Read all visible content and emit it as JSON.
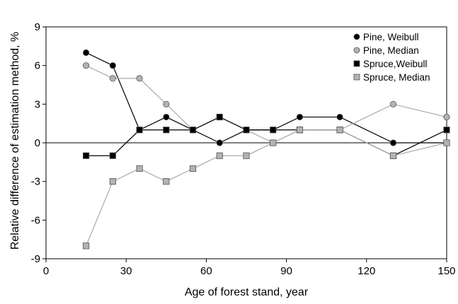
{
  "chart_data": {
    "type": "line",
    "title": "",
    "xlabel": "Age of forest stand, year",
    "ylabel": "Relative difference of estimation method, %",
    "xlim": [
      0,
      150
    ],
    "ylim": [
      -9,
      9
    ],
    "xticks": [
      0,
      30,
      60,
      90,
      120,
      150
    ],
    "yticks": [
      -9,
      -6,
      -3,
      0,
      3,
      6,
      9
    ],
    "grid": false,
    "zero_line": true,
    "legend_position": "top-right",
    "x": [
      15,
      25,
      35,
      45,
      55,
      65,
      75,
      85,
      95,
      110,
      130,
      150
    ],
    "series": [
      {
        "name": "Pine, Weibull",
        "marker": "circle",
        "fill": "#000000",
        "line": "#000000",
        "values": [
          7,
          6,
          1,
          2,
          1,
          0,
          1,
          1,
          2,
          2,
          0,
          0
        ]
      },
      {
        "name": "Pine, Median",
        "marker": "circle",
        "fill": "#b3b3b3",
        "line": "#aaaaaa",
        "values": [
          6,
          5,
          5,
          3,
          1,
          2,
          1,
          0,
          1,
          1,
          3,
          2
        ]
      },
      {
        "name": "Spruce,Weibull",
        "marker": "square",
        "fill": "#000000",
        "line": "#000000",
        "values": [
          -1,
          -1,
          1,
          1,
          1,
          2,
          1,
          1,
          1,
          1,
          -1,
          1
        ]
      },
      {
        "name": "Spruce, Median",
        "marker": "square",
        "fill": "#b3b3b3",
        "line": "#aaaaaa",
        "values": [
          -8,
          -3,
          -2,
          -3,
          -2,
          -1,
          -1,
          0,
          1,
          1,
          -1,
          0
        ]
      }
    ]
  }
}
